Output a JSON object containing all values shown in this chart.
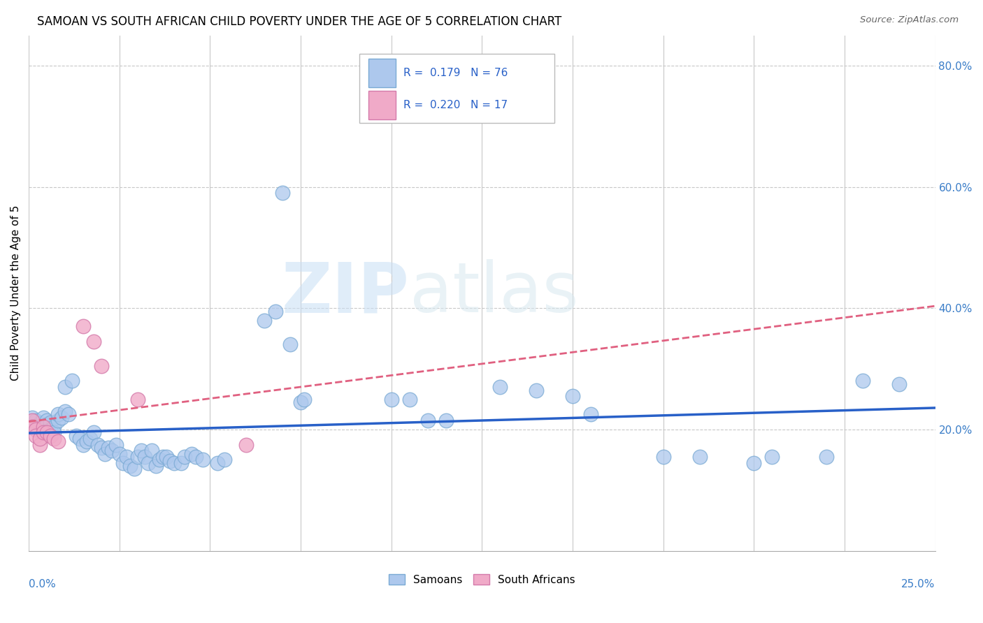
{
  "title": "SAMOAN VS SOUTH AFRICAN CHILD POVERTY UNDER THE AGE OF 5 CORRELATION CHART",
  "source": "Source: ZipAtlas.com",
  "ylabel": "Child Poverty Under the Age of 5",
  "xlim": [
    0.0,
    0.25
  ],
  "ylim": [
    0.0,
    0.85
  ],
  "watermark_zip": "ZIP",
  "watermark_atlas": "atlas",
  "samoans_color": "#adc8ed",
  "samoans_edge": "#7aaad4",
  "south_africans_color": "#f0aac8",
  "south_africans_edge": "#d47aaa",
  "trendline_samoans_color": "#2860c8",
  "trendline_sa_color": "#e06080",
  "samoans_scatter": [
    [
      0.001,
      0.22
    ],
    [
      0.002,
      0.215
    ],
    [
      0.002,
      0.205
    ],
    [
      0.003,
      0.21
    ],
    [
      0.003,
      0.2
    ],
    [
      0.004,
      0.22
    ],
    [
      0.004,
      0.195
    ],
    [
      0.005,
      0.215
    ],
    [
      0.005,
      0.208
    ],
    [
      0.006,
      0.212
    ],
    [
      0.006,
      0.2
    ],
    [
      0.007,
      0.205
    ],
    [
      0.007,
      0.195
    ],
    [
      0.008,
      0.215
    ],
    [
      0.008,
      0.225
    ],
    [
      0.009,
      0.22
    ],
    [
      0.01,
      0.23
    ],
    [
      0.01,
      0.27
    ],
    [
      0.011,
      0.225
    ],
    [
      0.012,
      0.28
    ],
    [
      0.013,
      0.19
    ],
    [
      0.014,
      0.185
    ],
    [
      0.015,
      0.175
    ],
    [
      0.016,
      0.18
    ],
    [
      0.017,
      0.185
    ],
    [
      0.018,
      0.195
    ],
    [
      0.019,
      0.175
    ],
    [
      0.02,
      0.17
    ],
    [
      0.021,
      0.16
    ],
    [
      0.022,
      0.17
    ],
    [
      0.023,
      0.165
    ],
    [
      0.024,
      0.175
    ],
    [
      0.025,
      0.16
    ],
    [
      0.026,
      0.145
    ],
    [
      0.027,
      0.155
    ],
    [
      0.028,
      0.14
    ],
    [
      0.029,
      0.135
    ],
    [
      0.03,
      0.155
    ],
    [
      0.031,
      0.165
    ],
    [
      0.032,
      0.155
    ],
    [
      0.033,
      0.145
    ],
    [
      0.034,
      0.165
    ],
    [
      0.035,
      0.14
    ],
    [
      0.036,
      0.15
    ],
    [
      0.037,
      0.155
    ],
    [
      0.038,
      0.155
    ],
    [
      0.039,
      0.148
    ],
    [
      0.04,
      0.145
    ],
    [
      0.042,
      0.145
    ],
    [
      0.043,
      0.155
    ],
    [
      0.045,
      0.16
    ],
    [
      0.046,
      0.155
    ],
    [
      0.048,
      0.15
    ],
    [
      0.052,
      0.145
    ],
    [
      0.054,
      0.15
    ],
    [
      0.065,
      0.38
    ],
    [
      0.068,
      0.395
    ],
    [
      0.07,
      0.59
    ],
    [
      0.072,
      0.34
    ],
    [
      0.075,
      0.245
    ],
    [
      0.076,
      0.25
    ],
    [
      0.1,
      0.25
    ],
    [
      0.105,
      0.25
    ],
    [
      0.11,
      0.215
    ],
    [
      0.115,
      0.215
    ],
    [
      0.13,
      0.27
    ],
    [
      0.14,
      0.265
    ],
    [
      0.15,
      0.255
    ],
    [
      0.155,
      0.225
    ],
    [
      0.175,
      0.155
    ],
    [
      0.185,
      0.155
    ],
    [
      0.2,
      0.145
    ],
    [
      0.205,
      0.155
    ],
    [
      0.22,
      0.155
    ],
    [
      0.23,
      0.28
    ],
    [
      0.24,
      0.275
    ]
  ],
  "sa_scatter": [
    [
      0.001,
      0.215
    ],
    [
      0.001,
      0.205
    ],
    [
      0.002,
      0.2
    ],
    [
      0.002,
      0.19
    ],
    [
      0.003,
      0.175
    ],
    [
      0.003,
      0.185
    ],
    [
      0.004,
      0.205
    ],
    [
      0.004,
      0.195
    ],
    [
      0.005,
      0.195
    ],
    [
      0.006,
      0.19
    ],
    [
      0.007,
      0.185
    ],
    [
      0.008,
      0.18
    ],
    [
      0.015,
      0.37
    ],
    [
      0.018,
      0.345
    ],
    [
      0.02,
      0.305
    ],
    [
      0.03,
      0.25
    ],
    [
      0.06,
      0.175
    ]
  ]
}
